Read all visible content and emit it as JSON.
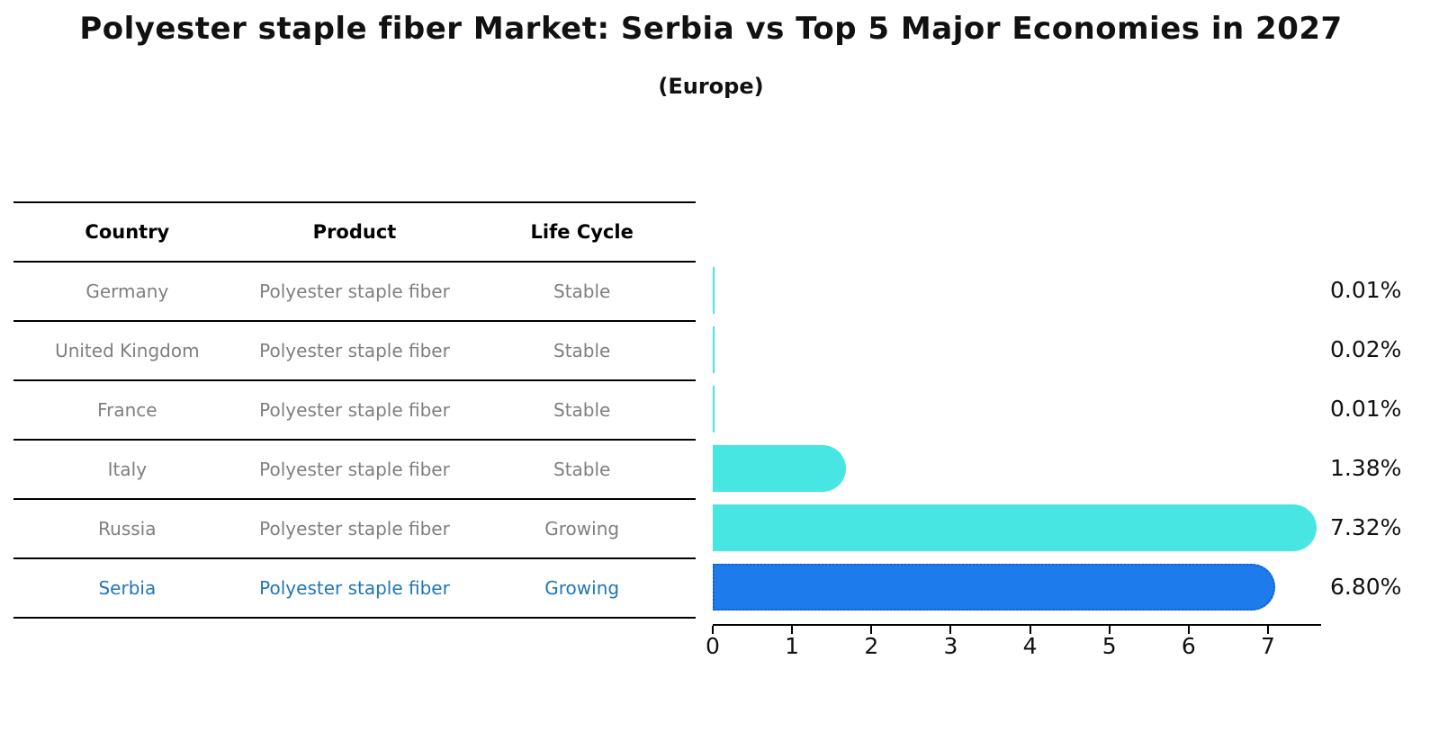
{
  "title": "Polyester staple fiber Market: Serbia vs Top 5 Major Economies in 2027",
  "subtitle": "(Europe)",
  "colors": {
    "bar_default": "#48e6e2",
    "bar_highlight": "#1e7beb",
    "bar_highlight_border": "#1360c8",
    "highlight_text": "#1f77b4",
    "row_text": "#7f7f7f",
    "header_text": "#000000",
    "value_text": "#111111"
  },
  "table": {
    "headers": [
      "Country",
      "Product",
      "Life Cycle"
    ],
    "rows": [
      {
        "country": "Germany",
        "product": "Polyester staple fiber",
        "life_cycle": "Stable",
        "highlight": false
      },
      {
        "country": "United Kingdom",
        "product": "Polyester staple fiber",
        "life_cycle": "Stable",
        "highlight": false
      },
      {
        "country": "France",
        "product": "Polyester staple fiber",
        "life_cycle": "Stable",
        "highlight": false
      },
      {
        "country": "Italy",
        "product": "Polyester staple fiber",
        "life_cycle": "Stable",
        "highlight": false
      },
      {
        "country": "Russia",
        "product": "Polyester staple fiber",
        "life_cycle": "Growing",
        "highlight": false
      },
      {
        "country": "Serbia",
        "product": "Polyester staple fiber",
        "life_cycle": "Growing",
        "highlight": true
      }
    ]
  },
  "chart_data": {
    "type": "bar",
    "orientation": "horizontal",
    "title": "Polyester staple fiber Market: Serbia vs Top 5 Major Economies in 2027",
    "subtitle": "(Europe)",
    "categories": [
      "Germany",
      "United Kingdom",
      "France",
      "Italy",
      "Russia",
      "Serbia"
    ],
    "values": [
      0.01,
      0.02,
      0.01,
      1.38,
      7.32,
      6.8
    ],
    "value_labels": [
      "0.01%",
      "0.02%",
      "0.01%",
      "1.38%",
      "7.32%",
      "6.80%"
    ],
    "highlight_index": 5,
    "xticks": [
      0,
      1,
      2,
      3,
      4,
      5,
      6,
      7
    ],
    "xlim": [
      0,
      7.67
    ],
    "xlabel": "",
    "ylabel": "",
    "grid": false,
    "legend": false
  }
}
